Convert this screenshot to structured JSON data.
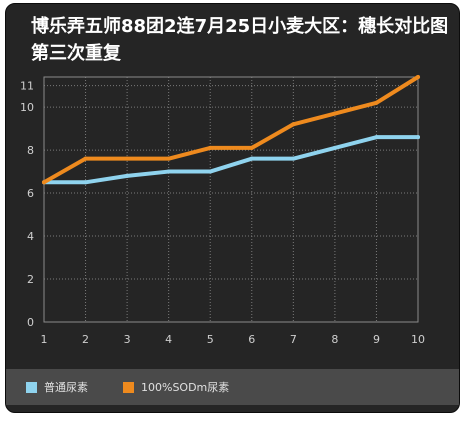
{
  "title": "博乐弄五师88团2连7月25日小麦大区：穗长对比图第三次重复",
  "colors": {
    "background": "#252525",
    "series_1": "#8fd3ee",
    "series_2": "#ee8a1e",
    "grid": "#7a7a7a",
    "axis_text": "#cfcfcf",
    "legend_bar": "#4a4a4a"
  },
  "chart_data": {
    "type": "line",
    "x": [
      1,
      2,
      3,
      4,
      5,
      6,
      7,
      8,
      9,
      10
    ],
    "xlim": [
      1,
      10
    ],
    "ylim": [
      0,
      11.4
    ],
    "yticks": [
      0,
      2,
      4,
      6,
      8,
      10,
      11
    ],
    "series": [
      {
        "name": "普通尿素",
        "color": "#8fd3ee",
        "values": [
          6.5,
          6.5,
          6.8,
          7.0,
          7.0,
          7.6,
          7.6,
          8.1,
          8.6,
          8.6
        ]
      },
      {
        "name": "100%SODm尿素",
        "color": "#ee8a1e",
        "values": [
          6.5,
          7.6,
          7.6,
          7.6,
          8.1,
          8.1,
          9.2,
          9.7,
          10.2,
          11.4
        ]
      }
    ],
    "grid": true,
    "legend_position": "bottom"
  }
}
